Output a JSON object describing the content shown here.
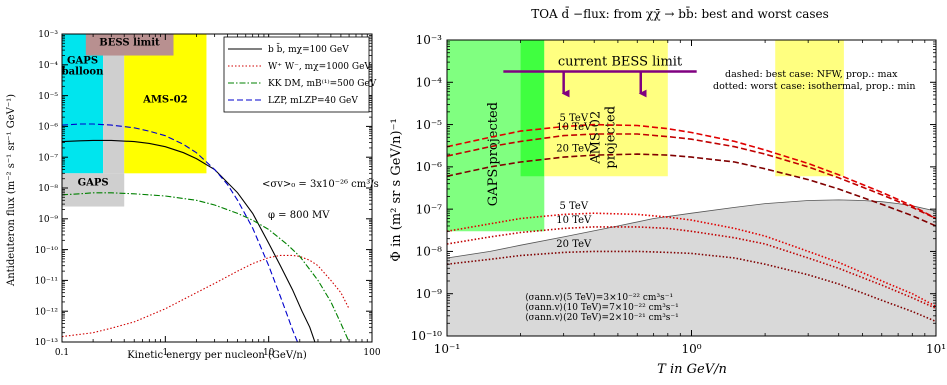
{
  "chart_data": [
    {
      "type": "line",
      "title": "",
      "xlabel": "Kinetic energy per nucleon (GeV/n)",
      "ylabel": "Antideuteron flux (m⁻² s⁻¹ sr⁻¹ GeV⁻¹)",
      "xscale": "log",
      "yscale": "log",
      "xlim": [
        0.1,
        100
      ],
      "ylim": [
        1e-13,
        0.001
      ],
      "grid": false,
      "legend_position": "top-right",
      "x_ticks": [
        {
          "value": 0.1,
          "label": "0.1"
        },
        {
          "value": 1,
          "label": "1"
        },
        {
          "value": 10,
          "label": "10"
        },
        {
          "value": 100,
          "label": "100"
        }
      ],
      "y_ticks": [
        {
          "value": 0.001,
          "label": "10⁻³"
        },
        {
          "value": 0.0001,
          "label": "10⁻⁴"
        },
        {
          "value": 1e-05,
          "label": "10⁻⁵"
        },
        {
          "value": 1e-06,
          "label": "10⁻⁶"
        },
        {
          "value": 1e-07,
          "label": "10⁻⁷"
        },
        {
          "value": 1e-08,
          "label": "10⁻⁸"
        },
        {
          "value": 1e-09,
          "label": "10⁻⁹"
        },
        {
          "value": 1e-10,
          "label": "10⁻¹⁰"
        },
        {
          "value": 1e-11,
          "label": "10⁻¹¹"
        },
        {
          "value": 1e-12,
          "label": "10⁻¹²"
        },
        {
          "value": 1e-13,
          "label": "10⁻¹³"
        }
      ],
      "regions": [
        {
          "name": "GAPS balloon",
          "label": "GAPS\nballoon",
          "x": [
            0.1,
            0.25
          ],
          "y": [
            3e-08,
            0.001
          ],
          "color": "#00e5ee"
        },
        {
          "name": "GAPS",
          "label": "GAPS",
          "x": [
            0.1,
            0.4
          ],
          "y": [
            2.5e-09,
            3e-08
          ],
          "color": "#cfcfcf"
        },
        {
          "name": "GAPS-column",
          "label": "",
          "x": [
            0.25,
            0.4
          ],
          "y": [
            3e-08,
            0.0003
          ],
          "color": "#cfcfcf"
        },
        {
          "name": "AMS-02",
          "label": "AMS-02",
          "x": [
            0.4,
            2.5
          ],
          "y": [
            3e-08,
            0.001
          ],
          "color": "#ffff00"
        },
        {
          "name": "BESS limit",
          "label": "BESS limit",
          "x": [
            0.17,
            1.2
          ],
          "y": [
            0.0002,
            0.001
          ],
          "color": "#b89090"
        }
      ],
      "legend": [
        {
          "label": "b b̄,  mχ=100 GeV",
          "color": "#000000",
          "dash": "solid"
        },
        {
          "label": "W⁺ W⁻,  mχ=1000 GeV",
          "color": "#d00000",
          "dash": "dot"
        },
        {
          "label": "KK DM, mB⁽¹⁾=500 GeV",
          "color": "#008000",
          "dash": "dashdot"
        },
        {
          "label": "LZP, mLZP=40 GeV",
          "color": "#0000cc",
          "dash": "dash"
        }
      ],
      "annotations": [
        "<σv>₀ = 3x10⁻²⁶ cm³/s",
        "φ = 800 MV"
      ],
      "series": [
        {
          "name": "b b̄,  mχ=100 GeV",
          "color": "#000000",
          "dash": "solid",
          "x": [
            0.1,
            0.15,
            0.2,
            0.3,
            0.5,
            0.7,
            1,
            1.5,
            2,
            3,
            5,
            7,
            10,
            13,
            17,
            21,
            25,
            28
          ],
          "y": [
            3.2e-07,
            3.4e-07,
            3.5e-07,
            3.5e-07,
            3.2e-07,
            2.8e-07,
            2.2e-07,
            1.4e-07,
            9e-08,
            4e-08,
            7e-09,
            1.5e-09,
            1.6e-10,
            3e-11,
            5e-12,
            1e-12,
            3e-13,
            1e-13
          ]
        },
        {
          "name": "W⁺ W⁻,  mχ=1000 GeV",
          "color": "#d00000",
          "dash": "dot",
          "x": [
            0.1,
            0.2,
            0.3,
            0.5,
            1,
            2,
            3,
            5,
            7,
            10,
            13,
            17,
            20,
            25,
            30,
            40,
            50,
            60
          ],
          "y": [
            1.5e-13,
            2e-13,
            2.8e-13,
            4.5e-13,
            1.2e-12,
            4e-12,
            8e-12,
            2e-11,
            3.5e-11,
            5.5e-11,
            6.5e-11,
            6.5e-11,
            6e-11,
            4.5e-11,
            3e-11,
            1e-11,
            4e-12,
            1.2e-12
          ]
        },
        {
          "name": "KK DM, mB⁽¹⁾=500 GeV",
          "color": "#008000",
          "dash": "dashdot",
          "x": [
            0.1,
            0.15,
            0.2,
            0.3,
            0.5,
            1,
            2,
            3,
            5,
            7,
            10,
            15,
            20,
            30,
            40,
            50,
            60
          ],
          "y": [
            6e-09,
            6.5e-09,
            7e-09,
            7e-09,
            6.5e-09,
            5.5e-09,
            4e-09,
            2.8e-09,
            1.5e-09,
            9e-10,
            4.5e-10,
            1.5e-10,
            6e-11,
            1e-11,
            2e-12,
            4e-13,
            1e-13
          ]
        },
        {
          "name": "LZP, mLZP=40 GeV",
          "color": "#0000cc",
          "dash": "dash",
          "x": [
            0.1,
            0.15,
            0.2,
            0.3,
            0.5,
            0.7,
            1,
            1.5,
            2,
            3,
            4,
            5,
            7,
            10,
            13,
            15,
            17,
            19
          ],
          "y": [
            1.1e-06,
            1.2e-06,
            1.2e-06,
            1.1e-06,
            9e-07,
            7e-07,
            5e-07,
            2.6e-07,
            1.4e-07,
            4e-08,
            1.3e-08,
            4e-09,
            5e-10,
            3e-11,
            3e-12,
            8e-13,
            2.5e-13,
            1e-13
          ]
        }
      ]
    },
    {
      "type": "line",
      "title": "TOA d̄ −flux: from χχ̄ → bb̄: best and worst cases",
      "xlabel": "T in GeV/n",
      "ylabel": "Φ in (m² sr s GeV/n)⁻¹",
      "xscale": "log",
      "yscale": "log",
      "xlim": [
        0.1,
        10
      ],
      "ylim": [
        1e-10,
        0.001
      ],
      "grid": false,
      "x_ticks": [
        {
          "value": 0.1,
          "label": "10⁻¹"
        },
        {
          "value": 1,
          "label": "10⁰"
        },
        {
          "value": 10,
          "label": "10¹"
        }
      ],
      "y_ticks": [
        {
          "value": 0.001,
          "label": "10⁻³"
        },
        {
          "value": 0.0001,
          "label": "10⁻⁴"
        },
        {
          "value": 1e-05,
          "label": "10⁻⁵"
        },
        {
          "value": 1e-06,
          "label": "10⁻⁶"
        },
        {
          "value": 1e-07,
          "label": "10⁻⁷"
        },
        {
          "value": 1e-08,
          "label": "10⁻⁸"
        },
        {
          "value": 1e-09,
          "label": "10⁻⁹"
        },
        {
          "value": 1e-10,
          "label": "10⁻¹⁰"
        }
      ],
      "regions": [
        {
          "name": "GAPS projected",
          "label": "GAPS projected",
          "x": [
            0.1,
            0.25
          ],
          "y": [
            3e-08,
            0.001
          ],
          "color": "#80ff80"
        },
        {
          "name": "GAPS-top",
          "label": "",
          "x": [
            0.2,
            0.25
          ],
          "y": [
            6e-07,
            0.001
          ],
          "color": "#40ff40"
        },
        {
          "name": "AMS-02 projected",
          "label": "AMS-02\nprojected",
          "x": [
            0.25,
            0.8
          ],
          "y": [
            6e-07,
            0.001
          ],
          "color": "#ffff80"
        },
        {
          "name": "AMS-02 high",
          "label": "",
          "x": [
            2.2,
            4.2
          ],
          "y": [
            6e-07,
            0.001
          ],
          "color": "#ffff80"
        }
      ],
      "background": {
        "name": "secondary background",
        "color": "#d9d9d9",
        "x": [
          0.1,
          0.15,
          0.2,
          0.3,
          0.5,
          0.7,
          1,
          1.5,
          2,
          3,
          4,
          5,
          6,
          7,
          8,
          10
        ],
        "y": [
          7e-09,
          1e-08,
          1.4e-08,
          2.2e-08,
          4e-08,
          6e-08,
          8e-08,
          1.1e-07,
          1.35e-07,
          1.6e-07,
          1.65e-07,
          1.6e-07,
          1.5e-07,
          1.35e-07,
          1.2e-07,
          9e-08
        ]
      },
      "bess_limit": {
        "label": "current BESS limit",
        "y": 0.00018,
        "x": [
          0.17,
          1.05
        ],
        "arrows_x": [
          0.3,
          0.62
        ],
        "color": "#800080"
      },
      "annotations": [
        "dashed: best case: NFW, prop.: max",
        "dotted: worst case: isothermal, prop.: min",
        "⟨σann.v⟩(5 TeV)=3×10⁻²² cm³s⁻¹",
        "⟨σann.v⟩(10 TeV)=7×10⁻²² cm³s⁻¹",
        "⟨σann.v⟩(20 TeV)=2×10⁻²¹ cm³s⁻¹"
      ],
      "series": [
        {
          "name": "5 TeV",
          "label": "5 TeV",
          "color": "#e00000",
          "dash": "dash",
          "x": [
            0.1,
            0.15,
            0.2,
            0.3,
            0.4,
            0.6,
            0.8,
            1,
            1.5,
            2,
            3,
            4,
            6,
            8,
            10
          ],
          "y": [
            3e-06,
            5e-06,
            7e-06,
            9e-06,
            1e-05,
            9.5e-06,
            8e-06,
            6.5e-06,
            4e-06,
            2.5e-06,
            1.2e-06,
            6.5e-07,
            2.5e-07,
            1.2e-07,
            6e-08
          ]
        },
        {
          "name": "10 TeV",
          "label": "10 TeV",
          "color": "#c00000",
          "dash": "dash",
          "x": [
            0.1,
            0.15,
            0.2,
            0.3,
            0.4,
            0.6,
            0.8,
            1,
            1.5,
            2,
            3,
            4,
            6,
            8,
            10
          ],
          "y": [
            1.8e-06,
            3e-06,
            4e-06,
            5.5e-06,
            6e-06,
            6e-06,
            5.2e-06,
            4.5e-06,
            3e-06,
            2e-06,
            1e-06,
            5.5e-07,
            2.2e-07,
            1.1e-07,
            6e-08
          ]
        },
        {
          "name": "20 TeV",
          "label": "20 TeV",
          "color": "#800000",
          "dash": "dash",
          "x": [
            0.1,
            0.15,
            0.2,
            0.3,
            0.4,
            0.6,
            0.8,
            1,
            1.5,
            2,
            3,
            4,
            6,
            8,
            10
          ],
          "y": [
            6e-07,
            1e-06,
            1.3e-06,
            1.7e-06,
            1.9e-06,
            2e-06,
            1.9e-06,
            1.7e-06,
            1.3e-06,
            9e-07,
            5e-07,
            3e-07,
            1.3e-07,
            7e-08,
            4e-08
          ]
        },
        {
          "name": "5 TeV",
          "label": "5 TeV",
          "color": "#e00000",
          "dash": "dot",
          "x": [
            0.1,
            0.15,
            0.2,
            0.3,
            0.4,
            0.6,
            0.8,
            1,
            1.5,
            2,
            3,
            4,
            6,
            8,
            10
          ],
          "y": [
            3e-08,
            4.5e-08,
            6e-08,
            7.5e-08,
            8e-08,
            7.5e-08,
            6.5e-08,
            5.5e-08,
            3.5e-08,
            2.3e-08,
            1e-08,
            5.5e-09,
            2e-09,
            1e-09,
            5e-10
          ]
        },
        {
          "name": "10 TeV",
          "label": "10 TeV",
          "color": "#c00000",
          "dash": "dot",
          "x": [
            0.1,
            0.15,
            0.2,
            0.3,
            0.4,
            0.6,
            0.8,
            1,
            1.5,
            2,
            3,
            4,
            6,
            8,
            10
          ],
          "y": [
            1.5e-08,
            2.2e-08,
            2.8e-08,
            3.5e-08,
            3.8e-08,
            3.8e-08,
            3.5e-08,
            3e-08,
            2.1e-08,
            1.5e-08,
            7e-09,
            4e-09,
            1.6e-09,
            8e-10,
            4.5e-10
          ]
        },
        {
          "name": "20 TeV",
          "label": "20 TeV",
          "color": "#800000",
          "dash": "dot",
          "x": [
            0.1,
            0.15,
            0.2,
            0.3,
            0.4,
            0.6,
            0.8,
            1,
            1.5,
            2,
            3,
            4,
            6,
            8,
            10
          ],
          "y": [
            5e-09,
            6.5e-09,
            8e-09,
            9.5e-09,
            1e-08,
            1e-08,
            9.5e-09,
            9e-09,
            7e-09,
            5e-09,
            2.8e-09,
            1.7e-09,
            7e-10,
            3.8e-10,
            2.2e-10
          ]
        }
      ]
    }
  ]
}
